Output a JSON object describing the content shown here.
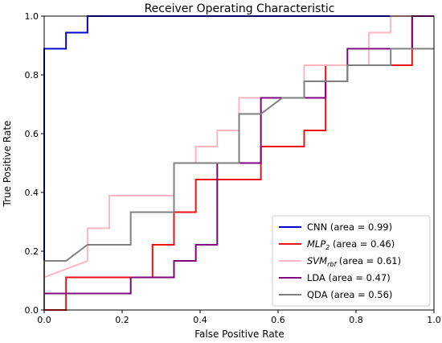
{
  "chart_data": {
    "type": "line",
    "title": "Receiver Operating Characteristic",
    "xlabel": "False Positive Rate",
    "ylabel": "True Positive Rate",
    "xlim": [
      0.0,
      1.0
    ],
    "ylim": [
      0.0,
      1.0
    ],
    "xticks": [
      "0.0",
      "0.2",
      "0.4",
      "0.6",
      "0.8",
      "1.0"
    ],
    "yticks": [
      "0.0",
      "0.2",
      "0.4",
      "0.6",
      "0.8",
      "1.0"
    ],
    "grid": false,
    "legend_position": "lower-right",
    "series": [
      {
        "name": "CNN",
        "legend_label": {
          "main": "CNN",
          "sub": "",
          "rest": " (area = 0.99)",
          "italic": false
        },
        "color": "#0000cc",
        "x": [
          0.0,
          0.0,
          0.0,
          0.056,
          0.056,
          0.111,
          0.111,
          0.889,
          0.889,
          1.0
        ],
        "y": [
          0.0,
          0.056,
          0.889,
          0.889,
          0.944,
          0.944,
          1.0,
          1.0,
          1.0,
          1.0
        ]
      },
      {
        "name": "MLP2",
        "legend_label": {
          "main": "MLP",
          "sub": "2",
          "rest": " (area = 0.46)",
          "italic": true
        },
        "color": "#ee1111",
        "x": [
          0.0,
          0.0,
          0.056,
          0.056,
          0.278,
          0.278,
          0.333,
          0.333,
          0.389,
          0.389,
          0.556,
          0.556,
          0.667,
          0.667,
          0.722,
          0.722,
          0.889,
          0.889,
          0.944,
          0.944,
          1.0
        ],
        "y": [
          0.0,
          0.0,
          0.0,
          0.111,
          0.111,
          0.222,
          0.222,
          0.333,
          0.333,
          0.444,
          0.444,
          0.556,
          0.556,
          0.611,
          0.611,
          0.833,
          0.833,
          0.833,
          0.833,
          1.0,
          1.0
        ]
      },
      {
        "name": "SVMrbf",
        "legend_label": {
          "main": "SVM",
          "sub": "rbf",
          "rest": " (area = 0.61)",
          "italic": true
        },
        "color": "#ffb6c1",
        "x": [
          0.0,
          0.0,
          0.111,
          0.111,
          0.167,
          0.167,
          0.333,
          0.333,
          0.389,
          0.389,
          0.444,
          0.444,
          0.5,
          0.5,
          0.556,
          0.556,
          0.667,
          0.667,
          0.833,
          0.833,
          0.889,
          0.889,
          1.0
        ],
        "y": [
          0.0,
          0.111,
          0.167,
          0.278,
          0.278,
          0.389,
          0.389,
          0.5,
          0.5,
          0.556,
          0.556,
          0.611,
          0.611,
          0.722,
          0.722,
          0.722,
          0.722,
          0.833,
          0.833,
          0.944,
          0.944,
          1.0,
          1.0
        ]
      },
      {
        "name": "LDA",
        "legend_label": {
          "main": "LDA",
          "sub": "",
          "rest": " (area = 0.47)",
          "italic": false
        },
        "color": "#800080",
        "x": [
          0.0,
          0.0,
          0.222,
          0.222,
          0.333,
          0.333,
          0.389,
          0.389,
          0.444,
          0.444,
          0.556,
          0.556,
          0.722,
          0.722,
          0.778,
          0.778,
          0.889,
          0.889,
          0.944,
          0.944,
          1.0
        ],
        "y": [
          0.0,
          0.056,
          0.056,
          0.111,
          0.111,
          0.167,
          0.167,
          0.222,
          0.222,
          0.5,
          0.5,
          0.722,
          0.722,
          0.778,
          0.778,
          0.889,
          0.889,
          0.889,
          0.889,
          1.0,
          1.0
        ]
      },
      {
        "name": "QDA",
        "legend_label": {
          "main": "QDA",
          "sub": "",
          "rest": " (area = 0.56)",
          "italic": false
        },
        "color": "#808080",
        "x": [
          0.0,
          0.0,
          0.056,
          0.111,
          0.111,
          0.222,
          0.222,
          0.333,
          0.333,
          0.444,
          0.5,
          0.5,
          0.556,
          0.611,
          0.667,
          0.667,
          0.778,
          0.778,
          0.833,
          0.833,
          0.889,
          0.889,
          1.0
        ],
        "y": [
          0.0,
          0.167,
          0.167,
          0.222,
          0.222,
          0.222,
          0.333,
          0.333,
          0.5,
          0.5,
          0.5,
          0.667,
          0.667,
          0.722,
          0.722,
          0.778,
          0.778,
          0.833,
          0.833,
          0.833,
          0.833,
          0.889,
          0.889
        ]
      }
    ]
  }
}
